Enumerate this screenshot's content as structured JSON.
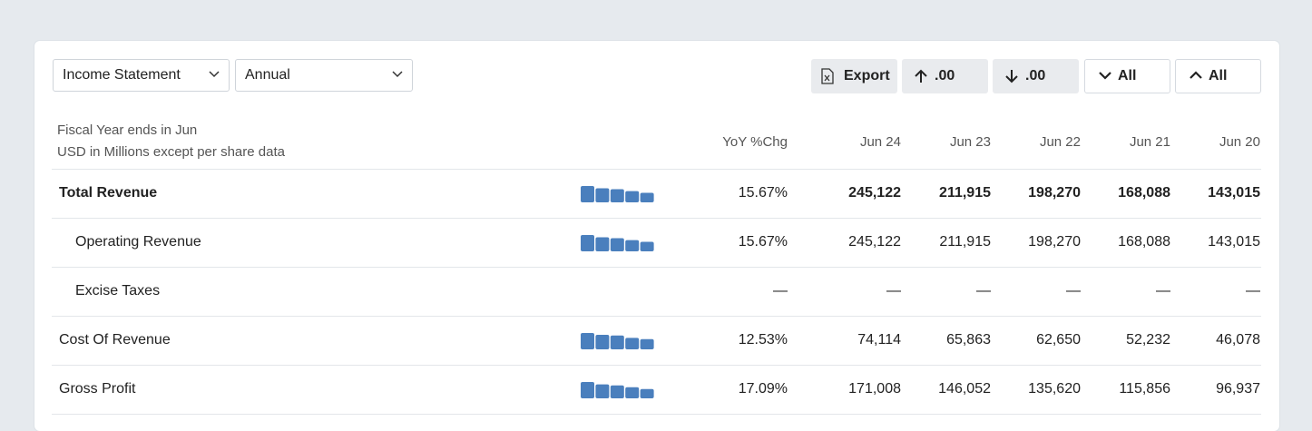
{
  "controls": {
    "statement": "Income Statement",
    "period": "Annual",
    "export": "Export",
    "round_up": ".00",
    "round_down": ".00",
    "collapse": "All",
    "expand": "All"
  },
  "table": {
    "note": [
      "Fiscal Year ends in Jun",
      "USD in Millions except per share data"
    ],
    "columns": [
      "YoY %Chg",
      "Jun 24",
      "Jun 23",
      "Jun 22",
      "Jun 21",
      "Jun 20"
    ],
    "rows": [
      {
        "label": "Total Revenue",
        "yoy": "15.67%",
        "values": [
          "245,122",
          "211,915",
          "198,270",
          "168,088",
          "143,015"
        ]
      },
      {
        "label": "Operating Revenue",
        "yoy": "15.67%",
        "values": [
          "245,122",
          "211,915",
          "198,270",
          "168,088",
          "143,015"
        ]
      },
      {
        "label": "Excise Taxes",
        "yoy": "—",
        "values": [
          "—",
          "—",
          "—",
          "—",
          "—"
        ]
      },
      {
        "label": "Cost Of Revenue",
        "yoy": "12.53%",
        "values": [
          "74,114",
          "65,863",
          "62,650",
          "52,232",
          "46,078"
        ]
      },
      {
        "label": "Gross Profit",
        "yoy": "17.09%",
        "values": [
          "171,008",
          "146,052",
          "135,620",
          "115,856",
          "96,937"
        ]
      }
    ]
  }
}
